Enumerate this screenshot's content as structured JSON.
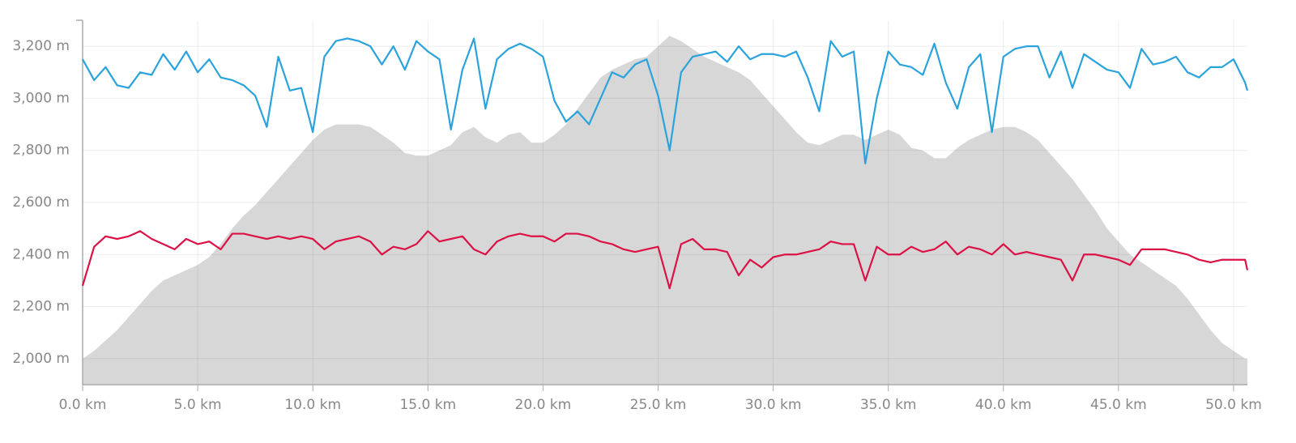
{
  "chart_data": {
    "type": "line",
    "x": [
      0,
      0.5,
      1,
      1.5,
      2,
      2.5,
      3,
      3.5,
      4,
      4.5,
      5,
      5.5,
      6,
      6.5,
      7,
      7.5,
      8,
      8.5,
      9,
      9.5,
      10,
      10.5,
      11,
      11.5,
      12,
      12.5,
      13,
      13.5,
      14,
      14.5,
      15,
      15.5,
      16,
      16.5,
      17,
      17.5,
      18,
      18.5,
      19,
      19.5,
      20,
      20.5,
      21,
      21.5,
      22,
      22.5,
      23,
      23.5,
      24,
      24.5,
      25,
      25.5,
      26,
      26.5,
      27,
      27.5,
      28,
      28.5,
      29,
      29.5,
      30,
      30.5,
      31,
      31.5,
      32,
      32.5,
      33,
      33.5,
      34,
      34.5,
      35,
      35.5,
      36,
      36.5,
      37,
      37.5,
      38,
      38.5,
      39,
      39.5,
      40,
      40.5,
      41,
      41.5,
      42,
      42.5,
      43,
      43.5,
      44,
      44.5,
      45,
      45.5,
      46,
      46.5,
      47,
      47.5,
      48,
      48.5,
      49,
      49.5,
      50,
      50.5,
      50.6
    ],
    "series": [
      {
        "type": "area",
        "color": "#d7d7d7",
        "values": [
          2000,
          2030,
          2070,
          2110,
          2160,
          2210,
          2260,
          2300,
          2320,
          2340,
          2360,
          2390,
          2440,
          2500,
          2550,
          2590,
          2640,
          2690,
          2740,
          2790,
          2840,
          2880,
          2900,
          2900,
          2900,
          2890,
          2860,
          2830,
          2790,
          2780,
          2780,
          2800,
          2820,
          2870,
          2890,
          2850,
          2830,
          2860,
          2870,
          2830,
          2830,
          2860,
          2900,
          2960,
          3020,
          3080,
          3110,
          3130,
          3150,
          3160,
          3200,
          3240,
          3220,
          3190,
          3160,
          3140,
          3120,
          3100,
          3070,
          3020,
          2970,
          2920,
          2870,
          2830,
          2820,
          2840,
          2860,
          2860,
          2840,
          2860,
          2880,
          2860,
          2810,
          2800,
          2770,
          2770,
          2810,
          2840,
          2860,
          2880,
          2890,
          2890,
          2870,
          2840,
          2790,
          2740,
          2690,
          2630,
          2570,
          2500,
          2450,
          2400,
          2370,
          2340,
          2310,
          2280,
          2230,
          2170,
          2110,
          2060,
          2030,
          2000,
          2000
        ]
      },
      {
        "type": "line",
        "color": "#2aa3dc",
        "values": [
          3150,
          3070,
          3120,
          3050,
          3040,
          3100,
          3090,
          3170,
          3110,
          3180,
          3100,
          3150,
          3080,
          3070,
          3050,
          3010,
          2890,
          3160,
          3030,
          3040,
          2870,
          3160,
          3220,
          3230,
          3220,
          3200,
          3130,
          3200,
          3110,
          3220,
          3180,
          3150,
          2880,
          3110,
          3230,
          2960,
          3150,
          3190,
          3210,
          3190,
          3160,
          2990,
          2910,
          2950,
          2900,
          3000,
          3100,
          3080,
          3130,
          3150,
          3010,
          2800,
          3100,
          3160,
          3170,
          3180,
          3140,
          3200,
          3150,
          3170,
          3170,
          3160,
          3180,
          3080,
          2950,
          3220,
          3160,
          3180,
          2750,
          3000,
          3180,
          3130,
          3120,
          3090,
          3210,
          3060,
          2960,
          3120,
          3170,
          2870,
          3160,
          3190,
          3200,
          3200,
          3080,
          3180,
          3040,
          3170,
          3140,
          3110,
          3100,
          3040,
          3190,
          3130,
          3140,
          3160,
          3100,
          3080,
          3120,
          3120,
          3150,
          3060,
          3030
        ]
      },
      {
        "type": "line",
        "color": "#dc1145",
        "values": [
          2280,
          2430,
          2470,
          2460,
          2470,
          2490,
          2460,
          2440,
          2420,
          2460,
          2440,
          2450,
          2420,
          2480,
          2480,
          2470,
          2460,
          2470,
          2460,
          2470,
          2460,
          2420,
          2450,
          2460,
          2470,
          2450,
          2400,
          2430,
          2420,
          2440,
          2490,
          2450,
          2460,
          2470,
          2420,
          2400,
          2450,
          2470,
          2480,
          2470,
          2470,
          2450,
          2480,
          2480,
          2470,
          2450,
          2440,
          2420,
          2410,
          2420,
          2430,
          2270,
          2440,
          2460,
          2420,
          2420,
          2410,
          2320,
          2380,
          2350,
          2390,
          2400,
          2400,
          2410,
          2420,
          2450,
          2440,
          2440,
          2300,
          2430,
          2400,
          2400,
          2430,
          2410,
          2420,
          2450,
          2400,
          2430,
          2420,
          2400,
          2440,
          2400,
          2410,
          2400,
          2390,
          2380,
          2300,
          2400,
          2400,
          2390,
          2380,
          2360,
          2420,
          2420,
          2420,
          2410,
          2400,
          2380,
          2370,
          2380,
          2380,
          2380,
          2340
        ]
      }
    ],
    "xlim": [
      0,
      50.6
    ],
    "ylim": [
      1900,
      3300
    ],
    "xticks": [
      {
        "value": 0,
        "label": "0.0 km"
      },
      {
        "value": 5,
        "label": "5.0 km"
      },
      {
        "value": 10,
        "label": "10.0 km"
      },
      {
        "value": 15,
        "label": "15.0 km"
      },
      {
        "value": 20,
        "label": "20.0 km"
      },
      {
        "value": 25,
        "label": "25.0 km"
      },
      {
        "value": 30,
        "label": "30.0 km"
      },
      {
        "value": 35,
        "label": "35.0 km"
      },
      {
        "value": 40,
        "label": "40.0 km"
      },
      {
        "value": 45,
        "label": "45.0 km"
      },
      {
        "value": 50,
        "label": "50.0 km"
      }
    ],
    "yticks": [
      {
        "value": 2000,
        "label": "2,000 m"
      },
      {
        "value": 2200,
        "label": "2,200 m"
      },
      {
        "value": 2400,
        "label": "2,400 m"
      },
      {
        "value": 2600,
        "label": "2,600 m"
      },
      {
        "value": 2800,
        "label": "2,800 m"
      },
      {
        "value": 3000,
        "label": "3,000 m"
      },
      {
        "value": 3200,
        "label": "3,200 m"
      }
    ],
    "grid": true
  }
}
